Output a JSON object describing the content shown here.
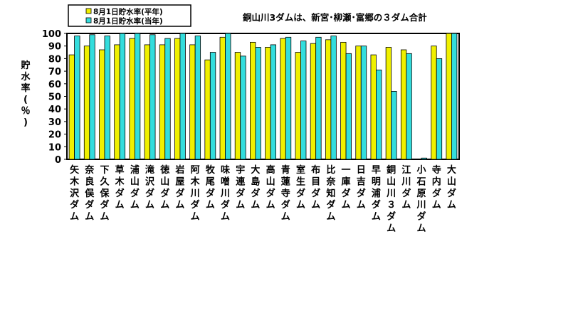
{
  "chart_data": {
    "type": "bar",
    "title": "",
    "note": "銅山川3ダムは、新宮･柳瀬･富郷の３ダム合計",
    "ylabel": "貯水率(％)",
    "xlabel": "",
    "ylim": [
      0,
      100
    ],
    "yticks": [
      0,
      10,
      20,
      30,
      40,
      50,
      60,
      70,
      80,
      90,
      100
    ],
    "grid": false,
    "legend_position": "top-left",
    "categories": [
      "矢木沢ダム",
      "奈良俣ダム",
      "下久保ダム",
      "草木ダム",
      "浦山ダム",
      "滝沢ダム",
      "徳山ダム",
      "岩屋ダム",
      "阿木川ダム",
      "牧尾ダム",
      "味噌川ダム",
      "宇連ダム",
      "大島ダム",
      "高山ダム",
      "青蓮寺ダム",
      "室生ダム",
      "布目ダム",
      "比奈知ダム",
      "一庫ダム",
      "日吉ダム",
      "早明浦ダム",
      "銅山川３ダム",
      "江川ダム",
      "小石原川ダム",
      "寺内ダム",
      "大山ダム"
    ],
    "series": [
      {
        "name": "8月1日貯水率(平年)",
        "color": "#f0f000",
        "values": [
          83,
          90,
          87,
          91,
          96,
          91,
          91,
          96,
          91,
          79,
          97,
          85,
          93,
          89,
          96,
          85,
          92,
          95,
          93,
          90,
          83,
          89,
          87,
          null,
          90,
          100
        ]
      },
      {
        "name": "8月1日貯水率(当年)",
        "color": "#33dddd",
        "values": [
          98,
          99,
          98,
          100,
          100,
          99,
          96,
          100,
          98,
          85,
          100,
          82,
          89,
          91,
          97,
          94,
          97,
          98,
          84,
          90,
          71,
          54,
          84,
          1,
          80,
          100
        ]
      }
    ]
  }
}
